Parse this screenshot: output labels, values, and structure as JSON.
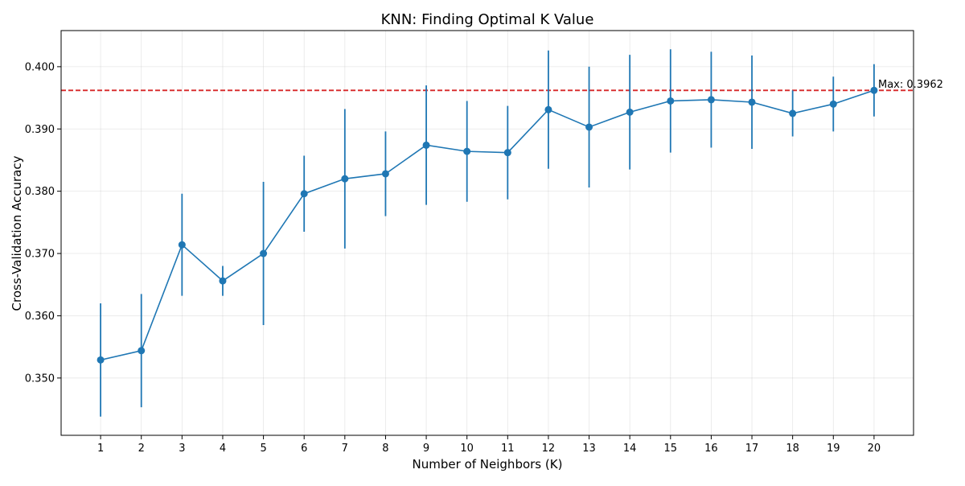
{
  "chart_data": {
    "type": "line",
    "title": "KNN: Finding Optimal K Value",
    "xlabel": "Number of Neighbors (K)",
    "ylabel": "Cross-Validation Accuracy",
    "x": [
      1,
      2,
      3,
      4,
      5,
      6,
      7,
      8,
      9,
      10,
      11,
      12,
      13,
      14,
      15,
      16,
      17,
      18,
      19,
      20
    ],
    "series": [
      {
        "values": [
          0.3529,
          0.3544,
          0.3714,
          0.3656,
          0.37,
          0.3796,
          0.382,
          0.3828,
          0.3874,
          0.3864,
          0.3862,
          0.3931,
          0.3903,
          0.3927,
          0.3945,
          0.3947,
          0.3943,
          0.3925,
          0.394,
          0.3962
        ],
        "errors": [
          0.0091,
          0.0091,
          0.0082,
          0.0024,
          0.0115,
          0.0061,
          0.0112,
          0.0068,
          0.0096,
          0.0081,
          0.0075,
          0.0095,
          0.0097,
          0.0092,
          0.0083,
          0.0077,
          0.0075,
          0.0037,
          0.0044,
          0.0042
        ],
        "color": "#1f77b4"
      }
    ],
    "reference_line": {
      "y": 0.3962,
      "color": "#d62728",
      "style": "dashed",
      "label": "Max: 0.3962"
    },
    "xticks": [
      "1",
      "2",
      "3",
      "4",
      "5",
      "6",
      "7",
      "8",
      "9",
      "10",
      "11",
      "12",
      "13",
      "14",
      "15",
      "16",
      "17",
      "18",
      "19",
      "20"
    ],
    "yticks": [
      "0.350",
      "0.360",
      "0.370",
      "0.380",
      "0.390",
      "0.400"
    ],
    "ytick_values": [
      0.35,
      0.36,
      0.37,
      0.38,
      0.39,
      0.4
    ],
    "xlim": [
      0.03,
      20.97
    ],
    "ylim": [
      0.3408,
      0.4058
    ],
    "grid": true
  }
}
